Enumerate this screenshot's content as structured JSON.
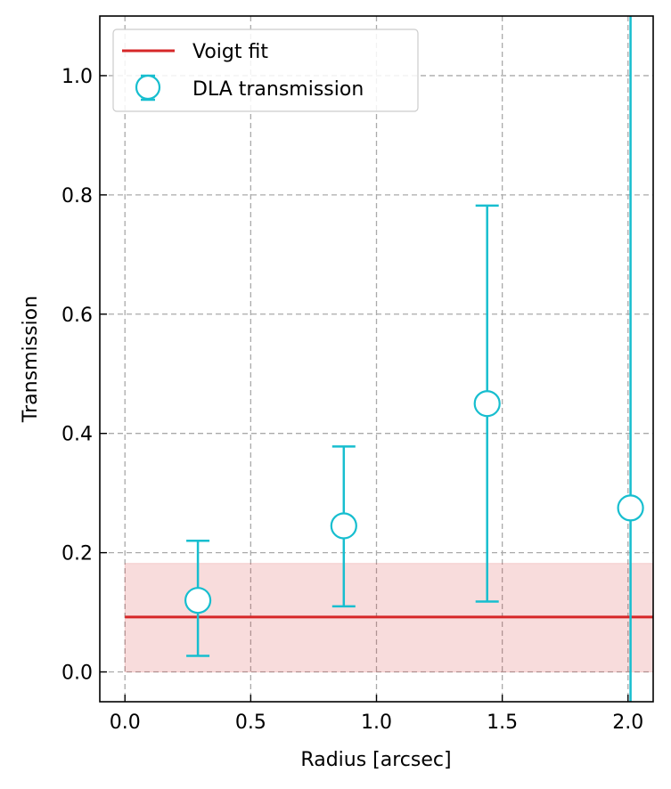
{
  "chart_data": {
    "type": "scatter",
    "title": "",
    "xlabel": "Radius [arcsec]",
    "ylabel": "Transmission",
    "xlim": [
      -0.1,
      2.1
    ],
    "ylim": [
      -0.05,
      1.1
    ],
    "x_ticks": [
      0.0,
      0.5,
      1.0,
      1.5,
      2.0
    ],
    "y_ticks": [
      0.0,
      0.2,
      0.4,
      0.6,
      0.8,
      1.0
    ],
    "grid": true,
    "legend_position": "upper-left",
    "series": [
      {
        "name": "DLA transmission",
        "kind": "errorbar",
        "color": "#17becf",
        "points": [
          {
            "x": 0.29,
            "y": 0.12,
            "lo": 0.027,
            "hi": 0.22
          },
          {
            "x": 0.87,
            "y": 0.245,
            "lo": 0.11,
            "hi": 0.378
          },
          {
            "x": 1.44,
            "y": 0.45,
            "lo": 0.118,
            "hi": 0.782
          },
          {
            "x": 2.01,
            "y": 0.275,
            "lo": -0.05,
            "hi": 1.1
          }
        ]
      },
      {
        "name": "Voigt fit",
        "kind": "line",
        "color": "#d62728",
        "y": 0.092,
        "band": [
          0.0,
          0.182
        ],
        "x_start": 0.0
      }
    ]
  }
}
